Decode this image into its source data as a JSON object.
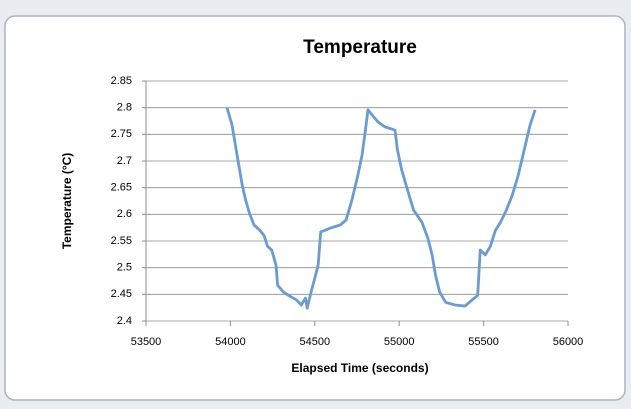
{
  "chart_data": {
    "type": "line",
    "title": "Temperature",
    "x_label": "Elapsed Time (seconds)",
    "y_label": "Temperature (°C)",
    "xlim": [
      53500,
      56000
    ],
    "xticks": [
      53500,
      54000,
      54500,
      55000,
      55500,
      56000
    ],
    "ylim": [
      2.4,
      2.85
    ],
    "yticks": [
      2.4,
      2.45,
      2.5,
      2.55,
      2.6,
      2.65,
      2.7,
      2.75,
      2.8,
      2.85
    ],
    "grid": true,
    "series": [
      {
        "color": "#6a9bd1",
        "x": [
          53980,
          54010,
          54040,
          54070,
          54090,
          54115,
          54140,
          54175,
          54200,
          54220,
          54245,
          54270,
          54280,
          54315,
          54350,
          54390,
          54420,
          54445,
          54455,
          54480,
          54505,
          54520,
          54535,
          54560,
          54590,
          54650,
          54685,
          54720,
          54755,
          54780,
          54800,
          54815,
          54840,
          54875,
          54915,
          54975,
          54990,
          55015,
          55050,
          55085,
          55135,
          55170,
          55195,
          55215,
          55240,
          55275,
          55330,
          55390,
          55430,
          55465,
          55480,
          55510,
          55540,
          55570,
          55600,
          55635,
          55670,
          55705,
          55740,
          55775,
          55805
        ],
        "values": [
          2.8,
          2.767,
          2.71,
          2.655,
          2.627,
          2.6,
          2.58,
          2.57,
          2.56,
          2.54,
          2.533,
          2.505,
          2.467,
          2.454,
          2.447,
          2.44,
          2.43,
          2.443,
          2.424,
          2.457,
          2.486,
          2.505,
          2.567,
          2.57,
          2.574,
          2.58,
          2.589,
          2.627,
          2.673,
          2.711,
          2.758,
          2.796,
          2.786,
          2.773,
          2.764,
          2.758,
          2.72,
          2.683,
          2.645,
          2.608,
          2.585,
          2.555,
          2.524,
          2.486,
          2.454,
          2.435,
          2.43,
          2.428,
          2.439,
          2.448,
          2.533,
          2.524,
          2.54,
          2.57,
          2.585,
          2.608,
          2.636,
          2.673,
          2.72,
          2.767,
          2.796
        ]
      }
    ]
  }
}
